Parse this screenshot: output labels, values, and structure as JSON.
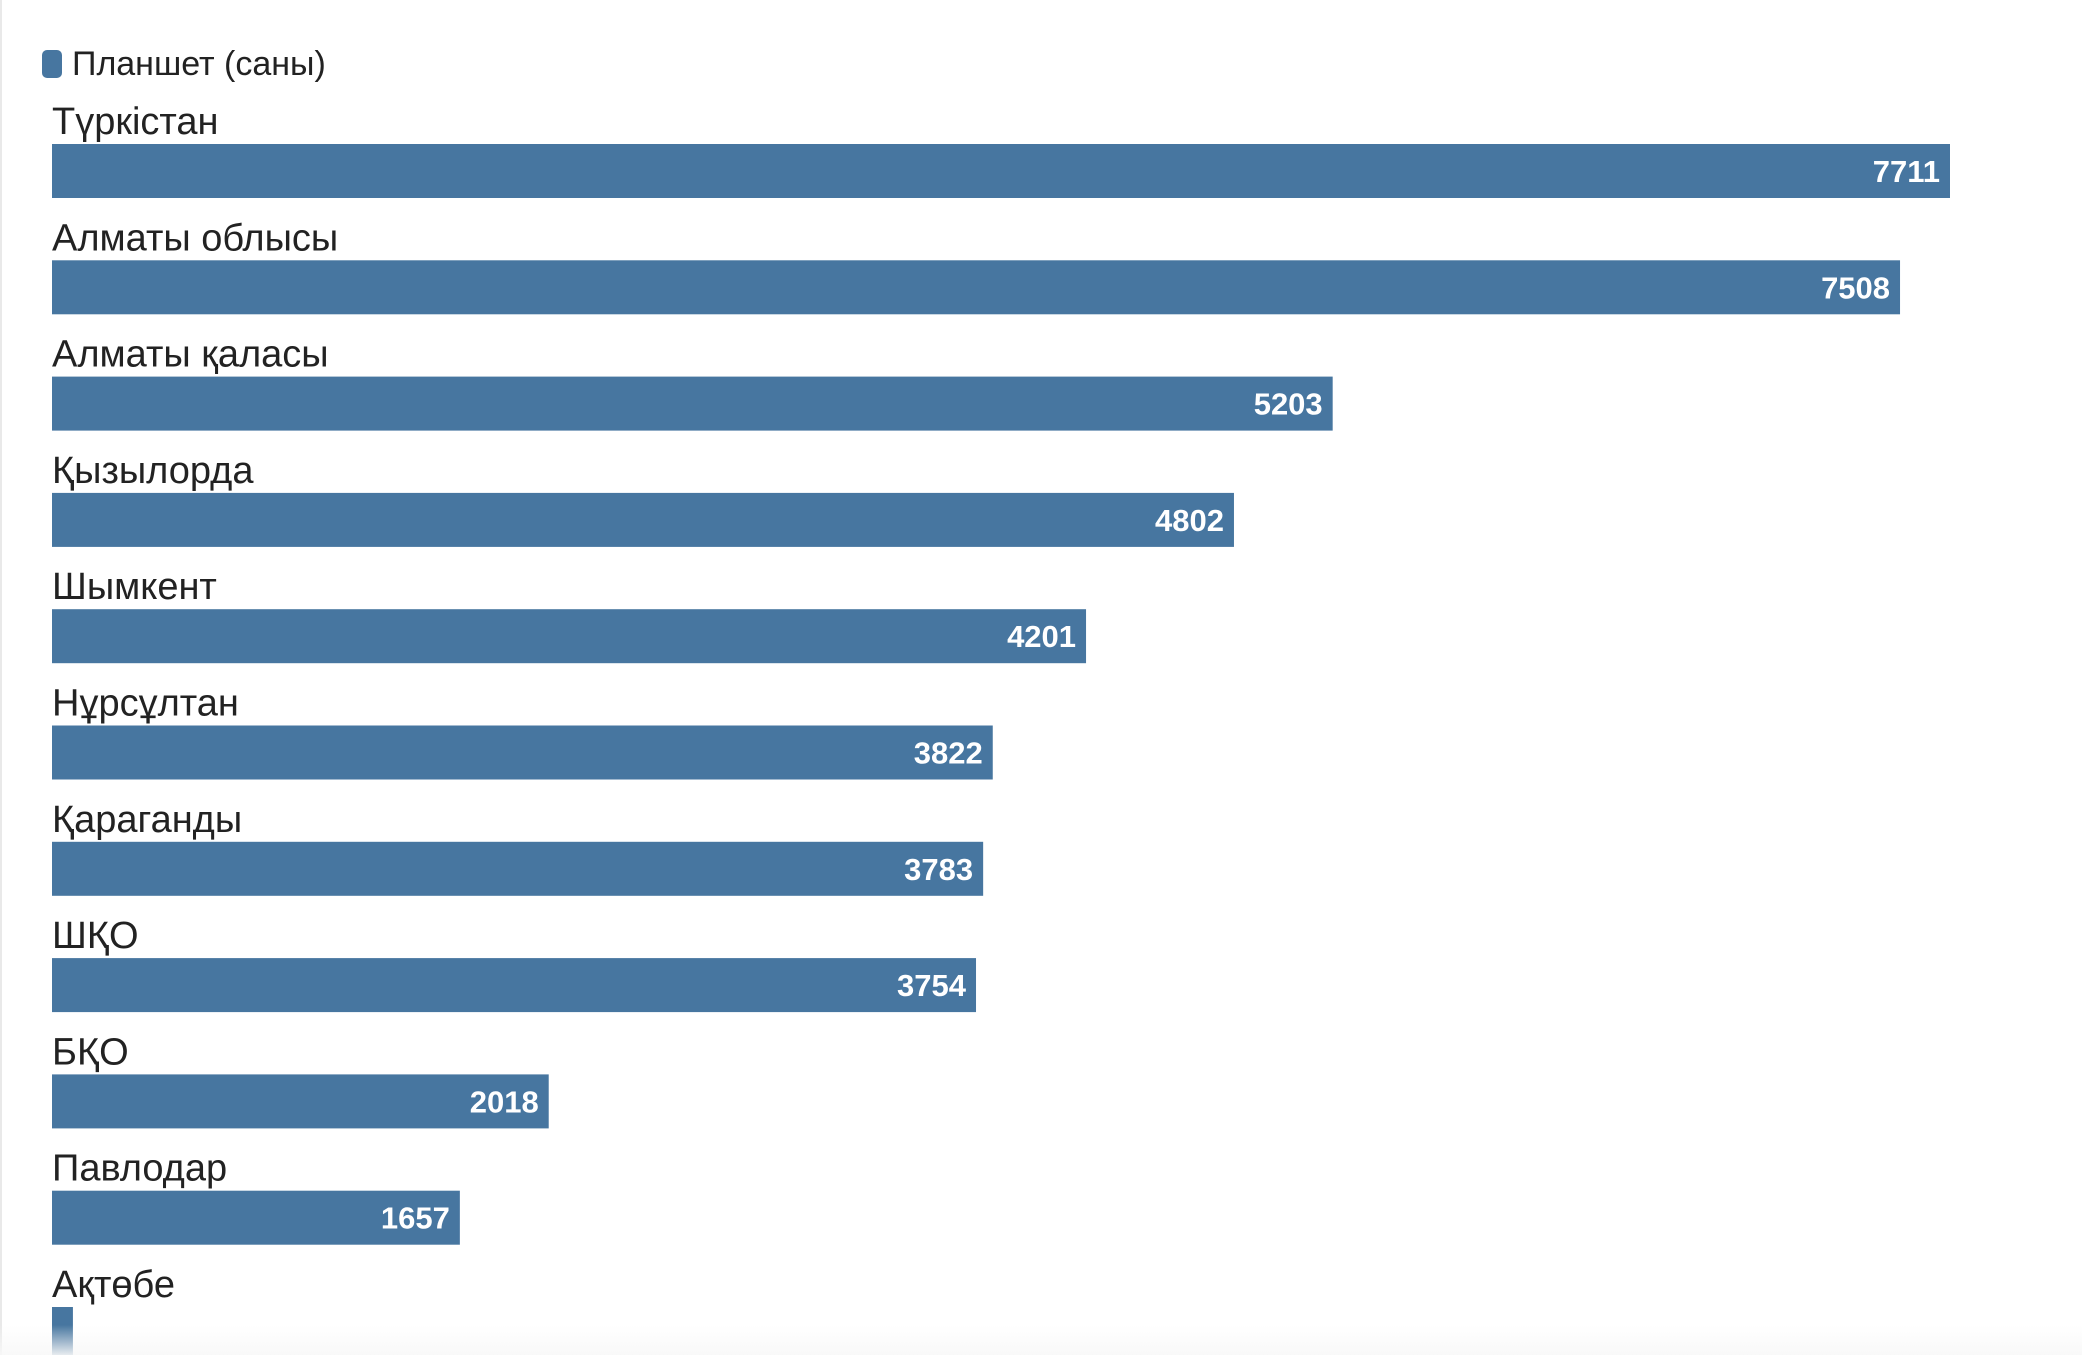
{
  "legend": {
    "label": "Планшет (саны)",
    "color": "#4776a0"
  },
  "chart_data": {
    "type": "bar",
    "orientation": "horizontal",
    "categories": [
      "Түркістан",
      "Алматы облысы",
      "Алматы қаласы",
      "Қызылорда",
      "Шымкент",
      "Нұрсұлтан",
      "Қараганды",
      "ШҚО",
      "БҚО",
      "Павлодар",
      "Ақтөбе"
    ],
    "series": [
      {
        "name": "Планшет (саны)",
        "values": [
          7711,
          7508,
          5203,
          4802,
          4201,
          3822,
          3783,
          3754,
          2018,
          1657,
          85
        ],
        "value_labels": [
          "7711",
          "7508",
          "5203",
          "4802",
          "4201",
          "3822",
          "3783",
          "3754",
          "2018",
          "1657",
          ""
        ]
      }
    ],
    "color": "#4776a0",
    "value_label_color": "#ffffff",
    "category_label_color": "#222222",
    "xlim": [
      0,
      7711
    ],
    "grid": false,
    "legend_position": "top-left"
  }
}
